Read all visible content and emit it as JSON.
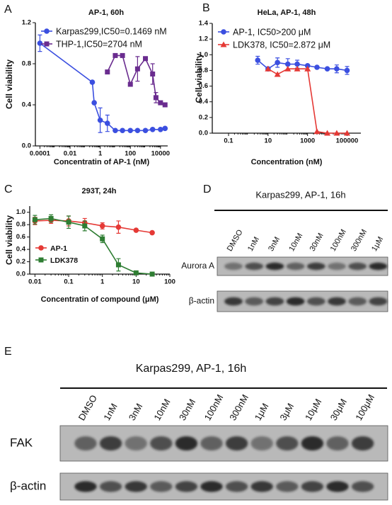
{
  "chart_data": [
    {
      "panel": "A",
      "type": "line",
      "title": "AP-1, 60h",
      "x_label": "Concentratin of AP-1 (nM)",
      "y_label": "Cell viability",
      "xscale": "log",
      "xlim": [
        5e-05,
        30000
      ],
      "xticks": [
        0.0001,
        0.01,
        1,
        100,
        10000
      ],
      "ylim": [
        0,
        1.2
      ],
      "yticks": [
        {
          "value": 0,
          "label": "0.0"
        },
        {
          "value": 0.4,
          "label": "0.4"
        },
        {
          "value": 0.8,
          "label": "0.8"
        },
        {
          "value": 1.2,
          "label": "1.2"
        }
      ],
      "legend": "upper left",
      "series": [
        {
          "name": "Karpas299,IC50=0.1469 nM",
          "color": "#3b4fe0",
          "marker": "circle",
          "x": [
            0.0001,
            0.3,
            0.4,
            1,
            3,
            10,
            30,
            100,
            300,
            1000,
            3000,
            10000,
            20000
          ],
          "values": [
            1.0,
            0.62,
            0.42,
            0.25,
            0.22,
            0.15,
            0.15,
            0.15,
            0.15,
            0.15,
            0.16,
            0.16,
            0.17
          ],
          "errors": [
            0.08,
            null,
            null,
            0.12,
            0.08,
            null,
            null,
            null,
            null,
            null,
            null,
            null,
            null
          ]
        },
        {
          "name": "THP-1,IC50=2704 nM",
          "color": "#6a2c8f",
          "marker": "square",
          "x": [
            3,
            10,
            30,
            100,
            300,
            1000,
            3000,
            5000,
            10000,
            20000
          ],
          "values": [
            0.72,
            0.88,
            0.88,
            0.6,
            0.75,
            0.85,
            0.7,
            0.47,
            0.42,
            0.4
          ],
          "errors": [
            null,
            null,
            null,
            null,
            0.12,
            null,
            0.1,
            0.05,
            null,
            null
          ]
        }
      ]
    },
    {
      "panel": "B",
      "type": "line",
      "title": "HeLa, AP-1, 48h",
      "x_label": "Concentration (nM)",
      "y_label": "Cell viability",
      "xscale": "log",
      "xlim": [
        0.015,
        500000
      ],
      "xticks": [
        0.1,
        10,
        1000,
        100000
      ],
      "ylim": [
        0,
        1.4
      ],
      "yticks": [
        {
          "value": 0,
          "label": "0.0"
        },
        {
          "value": 0.2,
          "label": "0.2"
        },
        {
          "value": 0.4,
          "label": "0.4"
        },
        {
          "value": 0.6,
          "label": "0.6"
        },
        {
          "value": 0.8,
          "label": "0.8"
        },
        {
          "value": 1,
          "label": "1.0"
        },
        {
          "value": 1.2,
          "label": "1.2"
        },
        {
          "value": 1.4,
          "label": "1.4"
        }
      ],
      "legend": "upper left",
      "series": [
        {
          "name": "AP-1, IC50>200 μM",
          "color": "#3b4fe0",
          "marker": "circle",
          "x": [
            3,
            10,
            30,
            100,
            300,
            1000,
            3000,
            10000,
            30000,
            100000
          ],
          "values": [
            0.93,
            0.82,
            0.9,
            0.88,
            0.88,
            0.86,
            0.84,
            0.82,
            0.82,
            0.8
          ],
          "errors": [
            0.05,
            null,
            0.06,
            0.07,
            0.05,
            null,
            null,
            null,
            0.05,
            0.05
          ]
        },
        {
          "name": "LDK378, IC50=2.872 μM",
          "color": "#e53935",
          "marker": "triangle",
          "x": [
            10,
            30,
            100,
            300,
            1000,
            3000,
            10000,
            30000,
            100000
          ],
          "values": [
            0.82,
            0.75,
            0.82,
            0.82,
            0.82,
            0.02,
            0,
            0,
            0
          ],
          "errors": [
            null,
            null,
            null,
            null,
            null,
            null,
            null,
            null,
            null
          ]
        }
      ]
    },
    {
      "panel": "C",
      "type": "line",
      "title": "293T, 24h",
      "x_label": "Concentratin of compound (μM)",
      "y_label": "Cell viability",
      "xscale": "log",
      "xlim": [
        0.007,
        100
      ],
      "xticks": [
        0.01,
        0.1,
        1,
        10,
        100
      ],
      "ylim": [
        0,
        1.1
      ],
      "yticks": [
        {
          "value": 0,
          "label": "0.0"
        },
        {
          "value": 0.2,
          "label": "0.2"
        },
        {
          "value": 0.4,
          "label": "0.4"
        },
        {
          "value": 0.6,
          "label": "0.6"
        },
        {
          "value": 0.8,
          "label": "0.8"
        },
        {
          "value": 1,
          "label": "1.0"
        }
      ],
      "legend": "lower left",
      "series": [
        {
          "name": "AP-1",
          "color": "#e53935",
          "marker": "circle",
          "x": [
            0.01,
            0.03,
            0.1,
            0.3,
            1,
            3,
            10,
            30
          ],
          "values": [
            0.86,
            0.87,
            0.86,
            0.83,
            0.78,
            0.76,
            0.71,
            0.67
          ],
          "errors": [
            0.06,
            0.05,
            0.08,
            0.07,
            0.05,
            0.1,
            null,
            null
          ]
        },
        {
          "name": "LDK378",
          "color": "#2e7d32",
          "marker": "square",
          "x": [
            0.01,
            0.03,
            0.1,
            0.3,
            1,
            3,
            10,
            30
          ],
          "values": [
            0.88,
            0.9,
            0.84,
            0.78,
            0.57,
            0.15,
            0.02,
            0
          ],
          "errors": [
            0.07,
            0.06,
            0.1,
            0.08,
            0.06,
            0.1,
            null,
            null
          ]
        }
      ]
    }
  ],
  "blots": [
    {
      "panel": "D",
      "title": "Karpas299, AP-1, 16h",
      "lanes": [
        "DMSO",
        "1nM",
        "3nM",
        "10nM",
        "30nM",
        "100nM",
        "300nM",
        "1μM"
      ],
      "rows": [
        "Aurora A",
        "β-actin"
      ]
    },
    {
      "panel": "E",
      "title": "Karpas299, AP-1, 16h",
      "lanes": [
        "DMSO",
        "1nM",
        "3nM",
        "10nM",
        "30nM",
        "100nM",
        "300nM",
        "1μM",
        "3μM",
        "10μM",
        "30μM",
        "100μM"
      ],
      "rows": [
        "FAK",
        "β-actin"
      ]
    }
  ]
}
